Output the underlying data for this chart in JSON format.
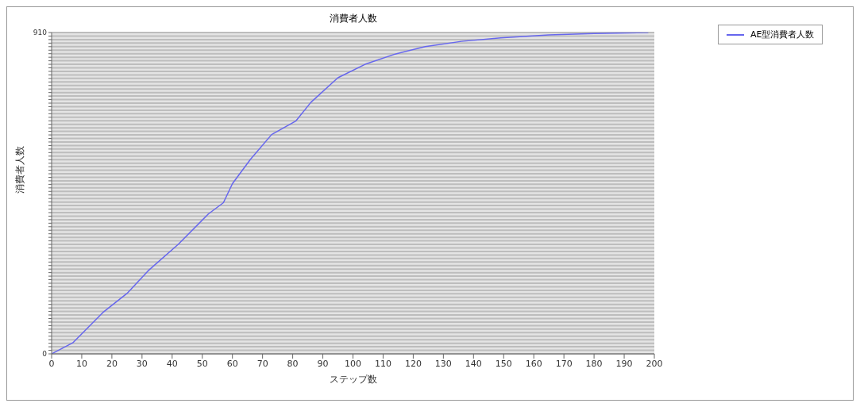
{
  "chart_data": {
    "type": "line",
    "title": "消費者人数",
    "xlabel": "ステップ数",
    "ylabel": "消費者人数",
    "x": [
      0,
      7,
      17,
      25,
      32,
      42,
      52,
      57,
      60,
      66,
      73,
      81,
      86,
      95,
      104,
      114,
      124,
      136,
      149,
      165,
      180,
      198
    ],
    "series": [
      {
        "name": "AE型消費者人数",
        "color": "#6666ee",
        "values": [
          0,
          31,
          117,
          171,
          235,
          310,
          396,
          428,
          482,
          551,
          621,
          659,
          712,
          782,
          820,
          849,
          870,
          885,
          895,
          903,
          907,
          910
        ]
      }
    ],
    "xlim": [
      0,
      200
    ],
    "xticks": [
      0,
      10,
      20,
      30,
      40,
      50,
      60,
      70,
      80,
      90,
      100,
      110,
      120,
      130,
      140,
      150,
      160,
      170,
      180,
      190,
      200
    ],
    "ylim": [
      0,
      910
    ],
    "yticks": [
      0,
      {
        "value": 10,
        "label": null
      },
      {
        "value": 20,
        "label": null
      },
      {
        "value": 30,
        "label": null
      },
      {
        "value": 40,
        "label": null
      },
      {
        "value": 50,
        "label": null
      },
      {
        "value": 60,
        "label": null
      },
      {
        "value": 70,
        "label": null
      },
      {
        "value": 80,
        "label": null
      },
      {
        "value": 90,
        "label": null
      },
      {
        "value": 100,
        "label": null
      },
      {
        "value": 110,
        "label": null
      },
      {
        "value": 120,
        "label": null
      },
      {
        "value": 130,
        "label": null
      },
      {
        "value": 140,
        "label": null
      },
      {
        "value": 150,
        "label": null
      },
      {
        "value": 160,
        "label": null
      },
      {
        "value": 170,
        "label": null
      },
      {
        "value": 180,
        "label": null
      },
      {
        "value": 190,
        "label": null
      },
      {
        "value": 200,
        "label": null
      },
      {
        "value": 210,
        "label": null
      },
      {
        "value": 220,
        "label": null
      },
      {
        "value": 230,
        "label": null
      },
      {
        "value": 240,
        "label": null
      },
      {
        "value": 250,
        "label": null
      },
      {
        "value": 260,
        "label": null
      },
      {
        "value": 270,
        "label": null
      },
      {
        "value": 280,
        "label": null
      },
      {
        "value": 290,
        "label": null
      },
      {
        "value": 300,
        "label": null
      },
      {
        "value": 310,
        "label": null
      },
      {
        "value": 320,
        "label": null
      },
      {
        "value": 330,
        "label": null
      },
      {
        "value": 340,
        "label": null
      },
      {
        "value": 350,
        "label": null
      },
      {
        "value": 360,
        "label": null
      },
      {
        "value": 370,
        "label": null
      },
      {
        "value": 380,
        "label": null
      },
      {
        "value": 390,
        "label": null
      },
      {
        "value": 400,
        "label": null
      },
      {
        "value": 410,
        "label": null
      },
      {
        "value": 420,
        "label": null
      },
      {
        "value": 430,
        "label": null
      },
      {
        "value": 440,
        "label": null
      },
      {
        "value": 450,
        "label": null
      },
      {
        "value": 460,
        "label": null
      },
      {
        "value": 470,
        "label": null
      },
      {
        "value": 480,
        "label": null
      },
      {
        "value": 490,
        "label": null
      },
      {
        "value": 500,
        "label": null
      },
      {
        "value": 510,
        "label": null
      },
      {
        "value": 520,
        "label": null
      },
      {
        "value": 530,
        "label": null
      },
      {
        "value": 540,
        "label": null
      },
      {
        "value": 550,
        "label": null
      },
      {
        "value": 560,
        "label": null
      },
      {
        "value": 570,
        "label": null
      },
      {
        "value": 580,
        "label": null
      },
      {
        "value": 590,
        "label": null
      },
      {
        "value": 600,
        "label": null
      },
      {
        "value": 610,
        "label": null
      },
      {
        "value": 620,
        "label": null
      },
      {
        "value": 630,
        "label": null
      },
      {
        "value": 640,
        "label": null
      },
      {
        "value": 650,
        "label": null
      },
      {
        "value": 660,
        "label": null
      },
      {
        "value": 670,
        "label": null
      },
      {
        "value": 680,
        "label": null
      },
      {
        "value": 690,
        "label": null
      },
      {
        "value": 700,
        "label": null
      },
      {
        "value": 710,
        "label": null
      },
      {
        "value": 720,
        "label": null
      },
      {
        "value": 730,
        "label": null
      },
      {
        "value": 740,
        "label": null
      },
      {
        "value": 750,
        "label": null
      },
      {
        "value": 760,
        "label": null
      },
      {
        "value": 770,
        "label": null
      },
      {
        "value": 780,
        "label": null
      },
      {
        "value": 790,
        "label": null
      },
      {
        "value": 800,
        "label": null
      },
      {
        "value": 810,
        "label": null
      },
      {
        "value": 820,
        "label": null
      },
      {
        "value": 830,
        "label": null
      },
      {
        "value": 840,
        "label": null
      },
      {
        "value": 850,
        "label": null
      },
      {
        "value": 860,
        "label": null
      },
      {
        "value": 870,
        "label": null
      },
      {
        "value": 880,
        "label": null
      },
      {
        "value": 890,
        "label": null
      },
      {
        "value": 900,
        "label": null
      },
      910
    ],
    "grid": "y",
    "legend": "top right",
    "marker": "none",
    "line_style": "solid"
  }
}
